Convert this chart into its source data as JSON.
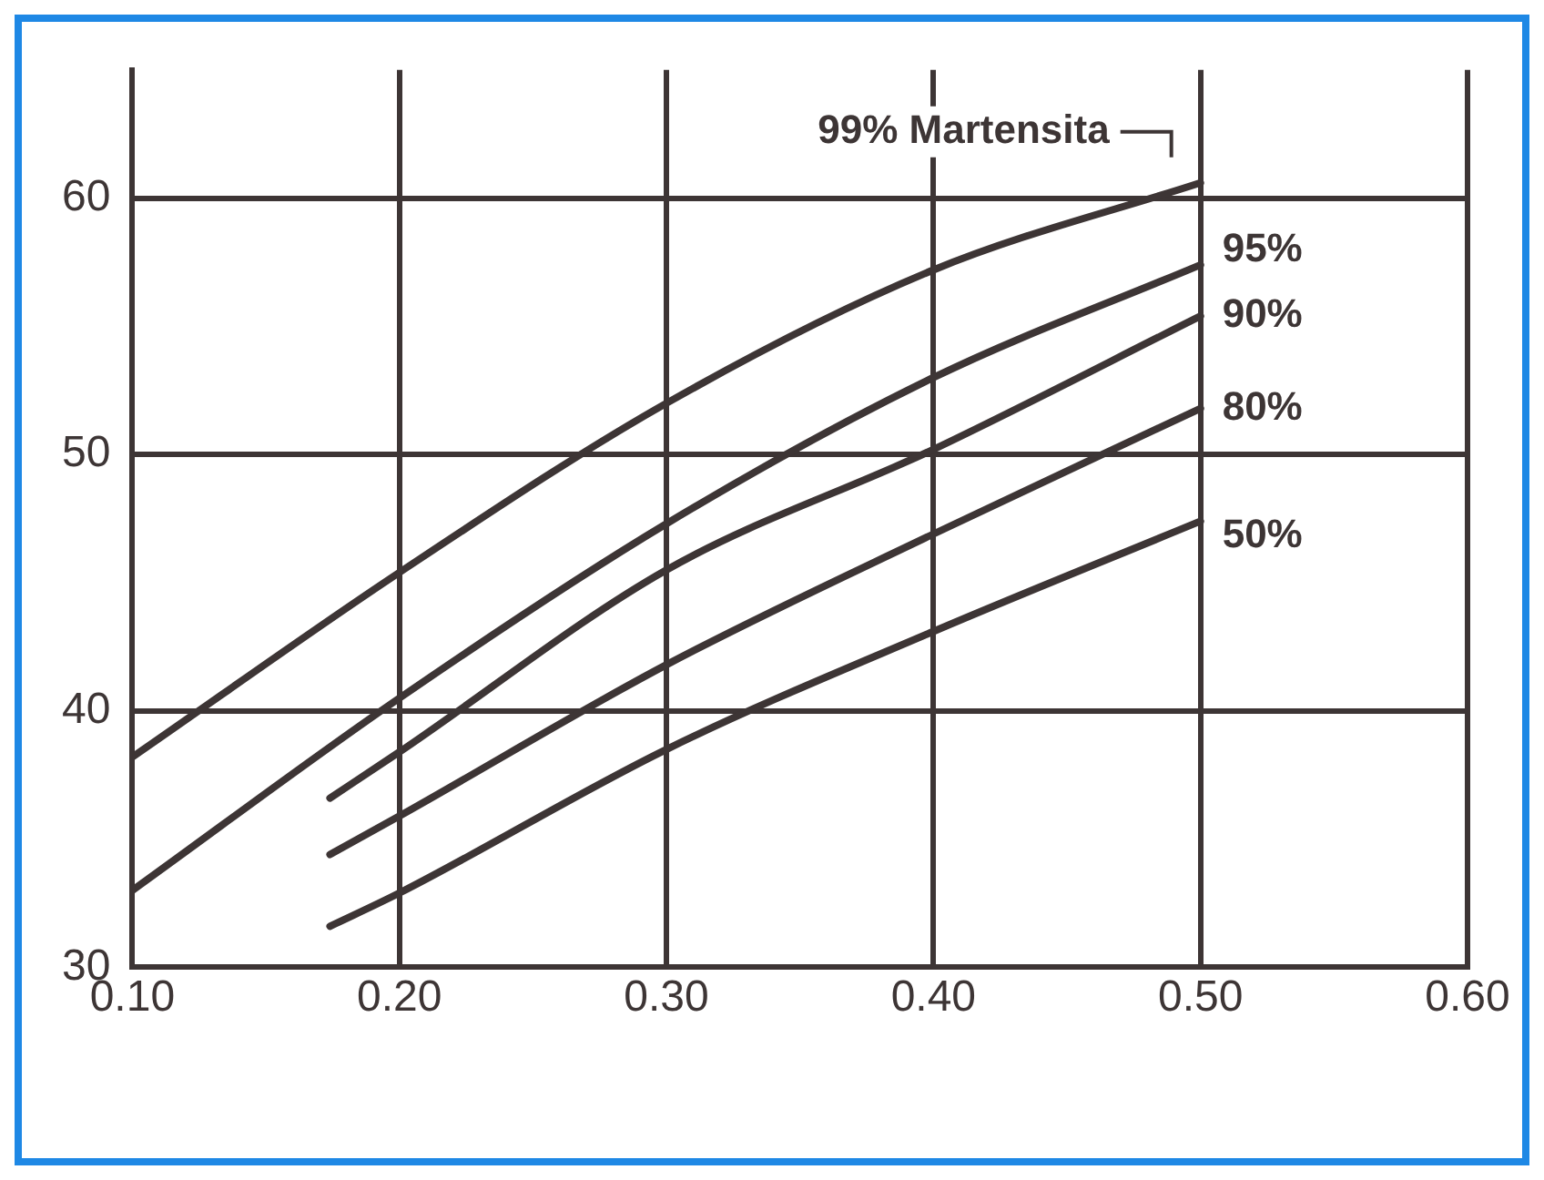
{
  "chart_data": {
    "type": "line",
    "xlim": [
      0.1,
      0.6
    ],
    "xticks": [
      {
        "value": 0.1,
        "label": "0.10"
      },
      {
        "value": 0.2,
        "label": "0.20"
      },
      {
        "value": 0.3,
        "label": "0.30"
      },
      {
        "value": 0.4,
        "label": "0.40"
      },
      {
        "value": 0.5,
        "label": "0.50"
      },
      {
        "value": 0.6,
        "label": "0.60"
      }
    ],
    "ylim": [
      30,
      65
    ],
    "yticks": [
      30,
      40,
      50,
      60
    ],
    "grid": true,
    "marker": "none",
    "line_style": "solid",
    "series": [
      {
        "name": "99% Martensita",
        "color": "#3d3535",
        "x": [
          0.1,
          0.2,
          0.3,
          0.4,
          0.5
        ],
        "values": [
          38.2,
          45.4,
          52,
          57.2,
          60.6
        ]
      },
      {
        "name": "95%",
        "color": "#3d3535",
        "x": [
          0.1,
          0.2,
          0.3,
          0.4,
          0.5
        ],
        "values": [
          33,
          40.5,
          47.3,
          53,
          57.4
        ]
      },
      {
        "name": "90%",
        "color": "#3d3535",
        "x": [
          0.174,
          0.2,
          0.3,
          0.4,
          0.5
        ],
        "values": [
          36.6,
          38.4,
          45.5,
          50.2,
          55.4
        ]
      },
      {
        "name": "80%",
        "color": "#3d3535",
        "x": [
          0.174,
          0.2,
          0.3,
          0.4,
          0.5
        ],
        "values": [
          34.4,
          35.9,
          41.8,
          46.9,
          51.8
        ]
      },
      {
        "name": "50%",
        "color": "#3d3535",
        "x": [
          0.174,
          0.2,
          0.3,
          0.4,
          0.5
        ],
        "values": [
          31.6,
          32.9,
          38.5,
          43.1,
          47.4
        ]
      }
    ]
  }
}
